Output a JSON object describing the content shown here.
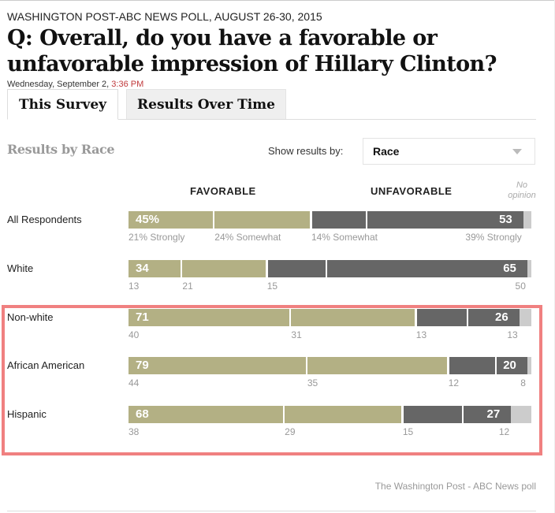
{
  "header": {
    "kicker": "WASHINGTON POST-ABC NEWS POLL, AUGUST 26-30, 2015",
    "question": "Q: Overall, do you have a favorable or unfavorable impression of Hillary Clinton?",
    "date": "Wednesday, September 2, ",
    "time": "3:36 PM"
  },
  "tabs": [
    {
      "label": "This Survey",
      "active": true
    },
    {
      "label": "Results Over Time",
      "active": false
    }
  ],
  "controls": {
    "section_title": "Results by Race",
    "show_label": "Show results by:",
    "selected": "Race"
  },
  "columns": {
    "favorable": "FAVORABLE",
    "unfavorable": "UNFAVORABLE",
    "no_opinion": "No opinion"
  },
  "source": "The Washington Post - ABC News poll",
  "colors": {
    "favorable": "#b3b084",
    "unfavorable": "#666666",
    "no_opinion": "#cccccc",
    "highlight": "#f08080",
    "time": "#c0393b"
  },
  "chart_data": {
    "type": "bar",
    "orientation": "horizontal-stacked",
    "title": "Results by Race",
    "categories": [
      "All Respondents",
      "White",
      "Non-white",
      "African American",
      "Hispanic"
    ],
    "series": [
      {
        "name": "Strongly favorable",
        "values": [
          21,
          13,
          40,
          44,
          38
        ]
      },
      {
        "name": "Somewhat favorable",
        "values": [
          24,
          21,
          31,
          35,
          29
        ]
      },
      {
        "name": "Somewhat unfavorable",
        "values": [
          14,
          15,
          13,
          12,
          15
        ]
      },
      {
        "name": "Strongly unfavorable",
        "values": [
          39,
          50,
          13,
          8,
          12
        ]
      },
      {
        "name": "No opinion",
        "values": [
          2,
          1,
          3,
          1,
          5
        ]
      }
    ],
    "totals": {
      "favorable": [
        45,
        34,
        71,
        79,
        68
      ],
      "unfavorable": [
        53,
        65,
        26,
        20,
        27
      ]
    },
    "rows": [
      {
        "label": "All Respondents",
        "fav_total": "45%",
        "unfav_total": "53",
        "sub": [
          "21% Strongly",
          "24% Somewhat",
          "14% Somewhat",
          "39% Strongly"
        ]
      },
      {
        "label": "White",
        "fav_total": "34",
        "unfav_total": "65",
        "sub": [
          "13",
          "21",
          "15",
          "50"
        ]
      },
      {
        "label": "Non-white",
        "fav_total": "71",
        "unfav_total": "26",
        "sub": [
          "40",
          "31",
          "13",
          "13"
        ]
      },
      {
        "label": "African American",
        "fav_total": "79",
        "unfav_total": "20",
        "sub": [
          "44",
          "35",
          "12",
          "8"
        ]
      },
      {
        "label": "Hispanic",
        "fav_total": "68",
        "unfav_total": "27",
        "sub": [
          "38",
          "29",
          "15",
          "12"
        ]
      }
    ],
    "highlighted_rows": [
      "Non-white",
      "African American",
      "Hispanic"
    ],
    "xlim": [
      0,
      100
    ],
    "legend": "top"
  }
}
